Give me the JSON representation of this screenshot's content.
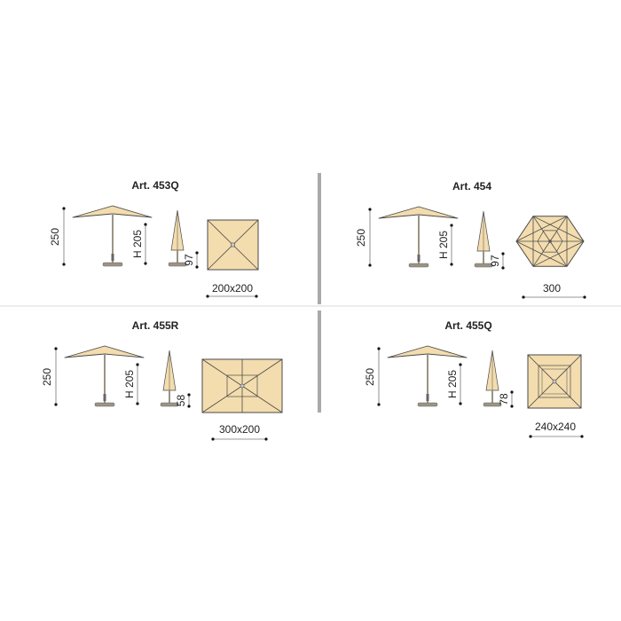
{
  "colors": {
    "canopy": "#f3dcae",
    "outline": "#4a4a4a",
    "pole": "#9b9484",
    "separator": "#a9a9ab",
    "divider": "#d8d8d8"
  },
  "panels": [
    {
      "title": "Art. 453Q",
      "height": "250",
      "open_height": "H 205",
      "folded_height": "97",
      "size": "200x200",
      "top_view": "square"
    },
    {
      "title": "Art. 454",
      "height": "250",
      "open_height": "H 205",
      "folded_height": "97",
      "size": "300",
      "top_view": "hexagon"
    },
    {
      "title": "Art. 455R",
      "height": "250",
      "open_height": "H 205",
      "folded_height": "58",
      "size": "300x200",
      "top_view": "rectangle"
    },
    {
      "title": "Art. 455Q",
      "height": "250",
      "open_height": "H 205",
      "folded_height": "78",
      "size": "240x240",
      "top_view": "square-inner"
    }
  ]
}
